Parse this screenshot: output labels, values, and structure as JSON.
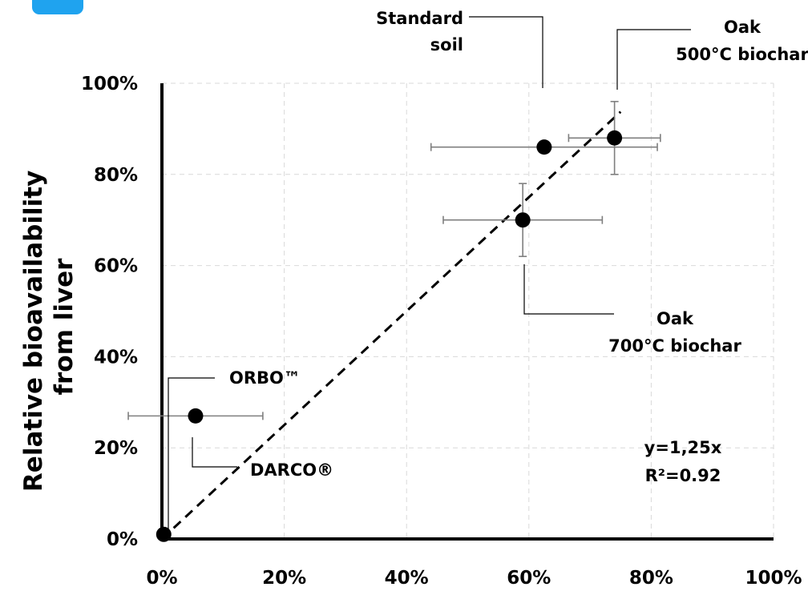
{
  "badge_color": "#1fa3ef",
  "chart_data": {
    "type": "scatter",
    "ylabel_lines": [
      "Relative bioavailability",
      "from liver"
    ],
    "xlabel": "",
    "xlim": [
      0,
      100
    ],
    "ylim": [
      0,
      100
    ],
    "x_ticks": [
      "0%",
      "20%",
      "40%",
      "60%",
      "80%",
      "100%"
    ],
    "y_ticks": [
      "0%",
      "20%",
      "40%",
      "60%",
      "80%",
      "100%"
    ],
    "grid": true,
    "points": [
      {
        "label_lines": [
          "Standard",
          "soil"
        ],
        "x": 62.5,
        "y": 86,
        "xerr": 18.5,
        "yerr": 0
      },
      {
        "label_lines": [
          "Oak",
          "500°C biochar"
        ],
        "x": 74,
        "y": 88,
        "xerr": 7.5,
        "yerr": 8
      },
      {
        "label_lines": [
          "Oak",
          "700°C biochar"
        ],
        "x": 59,
        "y": 70,
        "xerr": 13,
        "yerr": 8
      },
      {
        "label_lines": [
          "ORBO™"
        ],
        "x": 0.3,
        "y": 1,
        "xerr": 0,
        "yerr": 0
      },
      {
        "label_lines": [
          "DARCO®"
        ],
        "x": 5.5,
        "y": 27,
        "xerr": 11,
        "yerr": 0
      }
    ],
    "fit_line": {
      "slope": 1.25,
      "equation": "y=1,25x",
      "r2": "R²=0.92",
      "x_range": [
        0,
        75
      ]
    }
  }
}
